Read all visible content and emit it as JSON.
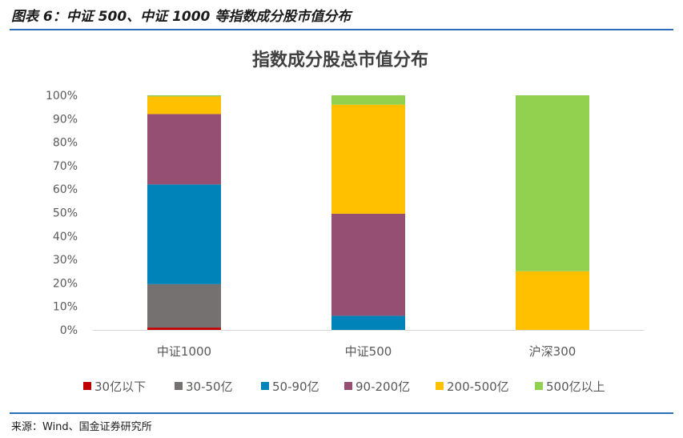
{
  "header": {
    "figure_title": "图表 6：中证 500、中证 1000 等指数成分股市值分布"
  },
  "footer": {
    "source": "来源：Wind、国金证券研究所"
  },
  "chart_data": {
    "type": "bar",
    "stacked": true,
    "title": "指数成分股总市值分布",
    "categories": [
      "中证1000",
      "中证500",
      "沪深300"
    ],
    "series": [
      {
        "name": "30亿以下",
        "color": "#c00000",
        "values": [
          1,
          0,
          0
        ]
      },
      {
        "name": "30-50亿",
        "color": "#767171",
        "values": [
          18.5,
          0,
          0
        ]
      },
      {
        "name": "50-90亿",
        "color": "#0083b8",
        "values": [
          42.5,
          6,
          0
        ]
      },
      {
        "name": "90-200亿",
        "color": "#954f72",
        "values": [
          30,
          43.5,
          0
        ]
      },
      {
        "name": "200-500亿",
        "color": "#ffc000",
        "values": [
          7.5,
          46.5,
          25
        ]
      },
      {
        "name": "500亿以上",
        "color": "#92d050",
        "values": [
          0.5,
          4,
          75
        ]
      }
    ],
    "ylim": [
      0,
      100
    ],
    "yticks": [
      "0%",
      "10%",
      "20%",
      "30%",
      "40%",
      "50%",
      "60%",
      "70%",
      "80%",
      "90%",
      "100%"
    ],
    "grid": false,
    "legend_position": "bottom"
  }
}
